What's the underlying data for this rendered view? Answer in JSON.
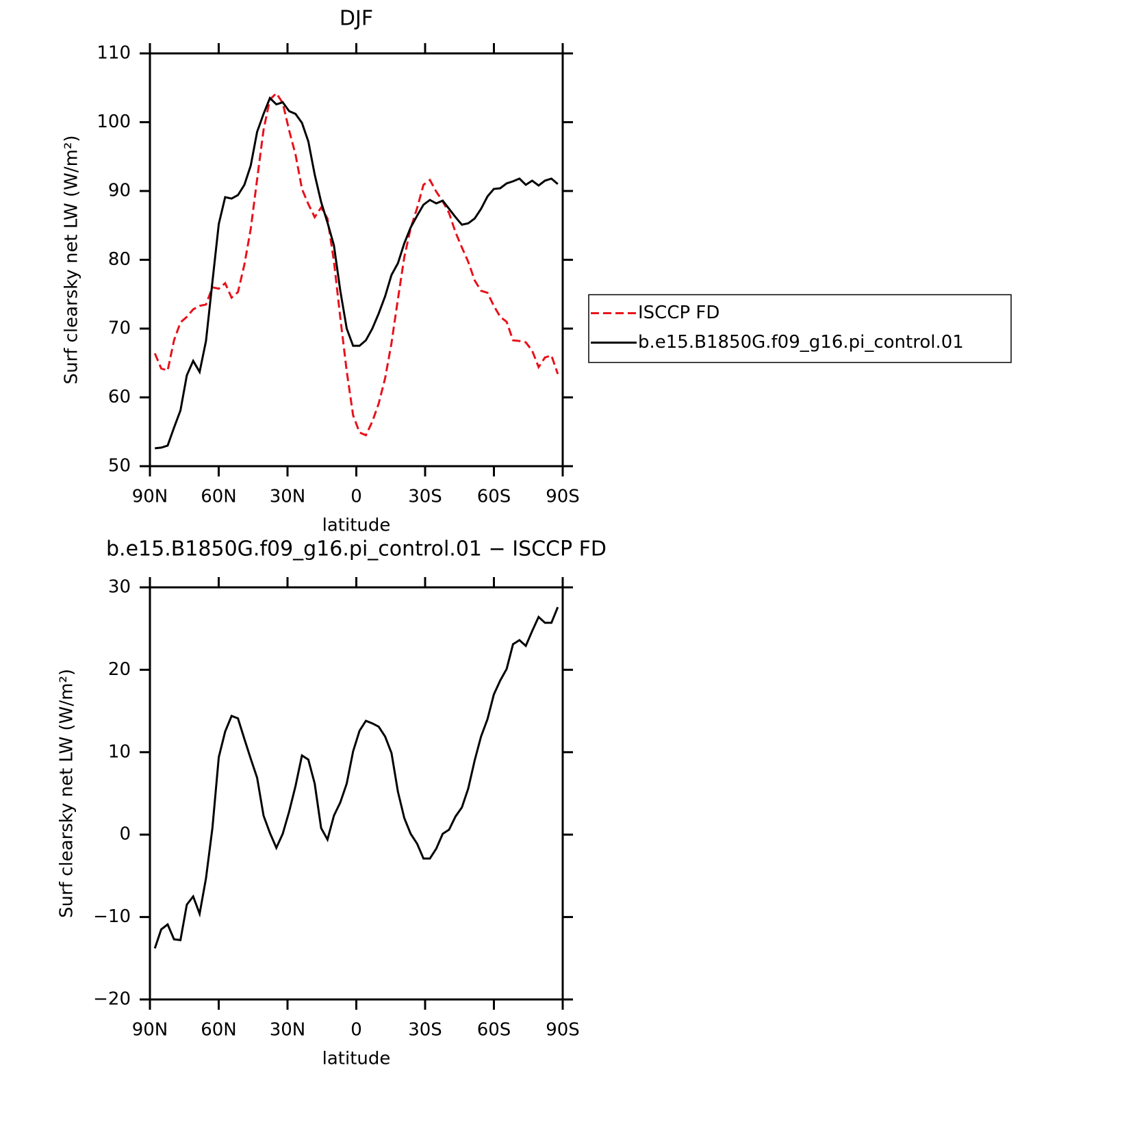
{
  "chart_data": [
    {
      "type": "line",
      "title": "DJF",
      "xlabel": "latitude",
      "ylabel": "Surf clearsky net LW (W/m²)",
      "x": [
        87.86,
        85.07,
        82.28,
        79.49,
        76.7,
        73.92,
        71.13,
        68.34,
        65.55,
        62.76,
        59.97,
        57.18,
        54.39,
        51.6,
        48.81,
        46.03,
        43.24,
        40.45,
        37.66,
        34.87,
        32.08,
        29.29,
        26.5,
        23.71,
        20.92,
        18.14,
        15.35,
        12.56,
        9.77,
        6.98,
        4.19,
        1.4,
        -1.4,
        -4.19,
        -6.98,
        -9.77,
        -12.56,
        -15.35,
        -18.14,
        -20.92,
        -23.71,
        -26.5,
        -29.29,
        -32.08,
        -34.87,
        -37.66,
        -40.45,
        -43.24,
        -46.03,
        -48.81,
        -51.6,
        -54.39,
        -57.18,
        -59.97,
        -62.76,
        -65.55,
        -68.34,
        -71.13,
        -73.92,
        -76.7,
        -79.49,
        -82.28,
        -85.07,
        -87.86
      ],
      "xlim": [
        90,
        -90
      ],
      "xticks": [
        {
          "value": 90,
          "label": "90N"
        },
        {
          "value": 60,
          "label": "60N"
        },
        {
          "value": 30,
          "label": "30N"
        },
        0,
        {
          "value": -30,
          "label": "30S"
        },
        {
          "value": -60,
          "label": "60S"
        },
        {
          "value": -90,
          "label": "90S"
        }
      ],
      "ylim": [
        50,
        110
      ],
      "yticks": [
        50,
        60,
        70,
        80,
        90,
        100,
        110
      ],
      "legend": "right",
      "series": [
        {
          "name": "ISCCP FD",
          "color": "#e8101a",
          "linestyle": "dashed",
          "values": [
            66.4,
            64.2,
            63.9,
            68.3,
            70.9,
            71.7,
            72.8,
            73.3,
            73.5,
            76.0,
            75.8,
            76.6,
            74.5,
            75.3,
            79.3,
            84.5,
            91.7,
            98.9,
            103.3,
            104.2,
            102.8,
            98.8,
            95.3,
            90.3,
            88.1,
            86.2,
            87.6,
            86.0,
            79.8,
            71.6,
            63.8,
            57.4,
            54.9,
            54.5,
            56.5,
            59.1,
            62.8,
            67.9,
            74.3,
            80.4,
            84.6,
            87.5,
            90.9,
            91.6,
            89.9,
            88.5,
            86.8,
            84.0,
            81.8,
            79.7,
            77.0,
            75.5,
            75.2,
            73.3,
            71.7,
            71.0,
            68.3,
            68.2,
            68.0,
            66.8,
            64.4,
            65.8,
            66.1,
            63.4
          ]
        },
        {
          "name": "b.e15.B1850G.f09_g16.pi_control.01",
          "color": "#000000",
          "linestyle": "solid",
          "values": [
            52.6,
            52.7,
            53.0,
            55.6,
            58.1,
            63.2,
            65.3,
            63.7,
            68.2,
            76.8,
            85.2,
            89.1,
            88.9,
            89.4,
            90.9,
            93.7,
            98.6,
            101.2,
            103.5,
            102.6,
            102.9,
            101.6,
            101.2,
            99.9,
            97.2,
            92.4,
            88.4,
            85.4,
            82.1,
            75.5,
            70.0,
            67.5,
            67.5,
            68.3,
            70.0,
            72.2,
            74.7,
            77.8,
            79.5,
            82.4,
            84.7,
            86.4,
            88.0,
            88.7,
            88.2,
            88.6,
            87.4,
            86.2,
            85.1,
            85.3,
            86.0,
            87.4,
            89.2,
            90.3,
            90.4,
            91.1,
            91.4,
            91.8,
            90.9,
            91.5,
            90.8,
            91.5,
            91.8,
            91.0
          ]
        }
      ]
    },
    {
      "type": "line",
      "title": "b.e15.B1850G.f09_g16.pi_control.01 − ISCCP FD",
      "xlabel": "latitude",
      "ylabel": "Surf clearsky net LW (W/m²)",
      "x": [
        87.86,
        85.07,
        82.28,
        79.49,
        76.7,
        73.92,
        71.13,
        68.34,
        65.55,
        62.76,
        59.97,
        57.18,
        54.39,
        51.6,
        48.81,
        46.03,
        43.24,
        40.45,
        37.66,
        34.87,
        32.08,
        29.29,
        26.5,
        23.71,
        20.92,
        18.14,
        15.35,
        12.56,
        9.77,
        6.98,
        4.19,
        1.4,
        -1.4,
        -4.19,
        -6.98,
        -9.77,
        -12.56,
        -15.35,
        -18.14,
        -20.92,
        -23.71,
        -26.5,
        -29.29,
        -32.08,
        -34.87,
        -37.66,
        -40.45,
        -43.24,
        -46.03,
        -48.81,
        -51.6,
        -54.39,
        -57.18,
        -59.97,
        -62.76,
        -65.55,
        -68.34,
        -71.13,
        -73.92,
        -76.7,
        -79.49,
        -82.28,
        -85.07,
        -87.86
      ],
      "xlim": [
        90,
        -90
      ],
      "xticks": [
        {
          "value": 90,
          "label": "90N"
        },
        {
          "value": 60,
          "label": "60N"
        },
        {
          "value": 30,
          "label": "30N"
        },
        0,
        {
          "value": -30,
          "label": "30S"
        },
        {
          "value": -60,
          "label": "60S"
        },
        {
          "value": -90,
          "label": "90S"
        }
      ],
      "ylim": [
        -20,
        30
      ],
      "yticks": [
        {
          "value": -20,
          "label": "−20"
        },
        {
          "value": -10,
          "label": "−10"
        },
        0,
        10,
        20,
        30
      ],
      "series": [
        {
          "color": "#000000",
          "linestyle": "solid",
          "values": [
            -13.8,
            -11.5,
            -10.9,
            -12.7,
            -12.8,
            -8.5,
            -7.5,
            -9.6,
            -5.3,
            0.8,
            9.4,
            12.5,
            14.4,
            14.1,
            11.6,
            9.2,
            6.9,
            2.3,
            0.2,
            -1.6,
            0.1,
            2.8,
            5.9,
            9.6,
            9.1,
            6.2,
            0.8,
            -0.6,
            2.3,
            3.9,
            6.2,
            10.1,
            12.6,
            13.8,
            13.5,
            13.1,
            11.9,
            9.9,
            5.2,
            2.0,
            0.1,
            -1.1,
            -2.9,
            -2.9,
            -1.7,
            0.1,
            0.6,
            2.2,
            3.3,
            5.6,
            9.0,
            11.9,
            14.0,
            17.0,
            18.7,
            20.1,
            23.1,
            23.6,
            22.9,
            24.7,
            26.4,
            25.7,
            25.7,
            27.6
          ]
        }
      ]
    }
  ]
}
